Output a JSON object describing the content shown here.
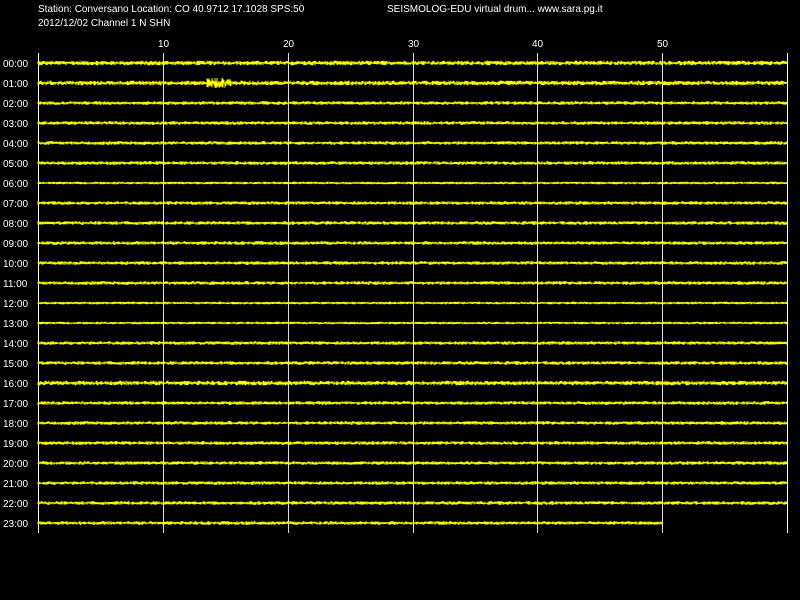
{
  "header": {
    "station_line": "Station: Conversano Location: CO 40.9712 17.1028 SPS:50",
    "program_line": "SEISMOLOG-EDU virtual drum... www.sara.pg.it",
    "date_line": "2012/12/02  Channel 1 N SHN"
  },
  "colors": {
    "background": "#000000",
    "trace": "#ffff00",
    "grid": "#ffffff",
    "text": "#ffffff"
  },
  "chart_data": {
    "type": "line",
    "title": "",
    "xlabel": "",
    "ylabel": "",
    "x_unit": "minutes",
    "xlim": [
      0,
      60
    ],
    "x_ticks": [
      10,
      20,
      30,
      40,
      50
    ],
    "grid": true,
    "hours": [
      "00:00",
      "01:00",
      "02:00",
      "03:00",
      "04:00",
      "05:00",
      "06:00",
      "07:00",
      "08:00",
      "09:00",
      "10:00",
      "11:00",
      "12:00",
      "13:00",
      "14:00",
      "15:00",
      "16:00",
      "17:00",
      "18:00",
      "19:00",
      "20:00",
      "21:00",
      "22:00",
      "23:00"
    ],
    "last_trace_end_minute": 50,
    "noise_amplitude": [
      2,
      2,
      1.5,
      1.5,
      1.5,
      1.5,
      1,
      1.5,
      1.5,
      1.5,
      1.5,
      1.5,
      1,
      1,
      1.5,
      1.5,
      2,
      1.5,
      1.5,
      1.5,
      1.5,
      1.5,
      1.5,
      1.5
    ],
    "events": [
      {
        "hour": "01:00",
        "start_minute": 13.5,
        "end_minute": 15.5,
        "amplitude": 5
      }
    ]
  }
}
